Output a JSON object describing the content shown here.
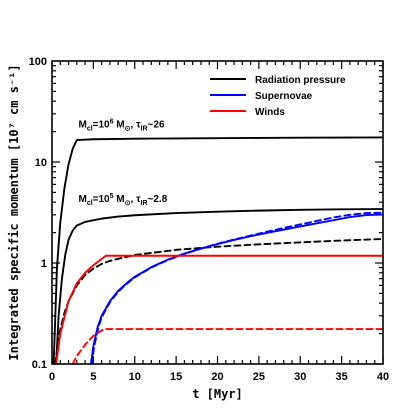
{
  "chart_data": {
    "type": "line",
    "xlabel": "t [Myr]",
    "ylabel": "Integrated specific momentum [10⁷ cm s⁻¹]",
    "xlim": [
      0,
      40
    ],
    "ylim": [
      0.1,
      100
    ],
    "yscale": "log",
    "grid": false,
    "legend_placement": "top-right",
    "x_ticks": [
      0,
      5,
      10,
      15,
      20,
      25,
      30,
      35,
      40
    ],
    "y_ticks": [
      0.1,
      1,
      10,
      100
    ],
    "y_tick_labels": [
      "0.1",
      "1",
      "10",
      "100"
    ],
    "legend": [
      {
        "label": "Radiation pressure",
        "color": "#000000"
      },
      {
        "label": "Supernovae",
        "color": "#0000ff"
      },
      {
        "label": "Winds",
        "color": "#ff0000"
      }
    ],
    "annotations": [
      {
        "text_parts": [
          {
            "t": "M",
            "style": "normal"
          },
          {
            "t": "cl",
            "style": "sub"
          },
          {
            "t": "=10",
            "style": "normal"
          },
          {
            "t": "6",
            "style": "sup"
          },
          {
            "t": " M",
            "style": "normal"
          },
          {
            "t": "⊙",
            "style": "sub"
          },
          {
            "t": ", τ",
            "style": "normal"
          },
          {
            "t": "IR",
            "style": "sub"
          },
          {
            "t": "~26",
            "style": "normal"
          }
        ],
        "x": 3.2,
        "y": 22
      },
      {
        "text_parts": [
          {
            "t": "M",
            "style": "normal"
          },
          {
            "t": "cl",
            "style": "sub"
          },
          {
            "t": "=10",
            "style": "normal"
          },
          {
            "t": "5",
            "style": "sup"
          },
          {
            "t": " M",
            "style": "normal"
          },
          {
            "t": "⊙",
            "style": "sub"
          },
          {
            "t": ", τ",
            "style": "normal"
          },
          {
            "t": "IR",
            "style": "sub"
          },
          {
            "t": "~2.8",
            "style": "normal"
          }
        ],
        "x": 3.2,
        "y": 4.0
      }
    ],
    "series": [
      {
        "group": "Radiation pressure",
        "color": "#000000",
        "dash": "solid",
        "x": [
          0.2,
          0.6,
          1.0,
          1.5,
          2.0,
          2.5,
          3.0,
          5,
          10,
          15,
          20,
          25,
          30,
          35,
          40
        ],
        "y": [
          0.1,
          0.9,
          2.5,
          5.5,
          9.5,
          13.5,
          16.5,
          16.8,
          17.0,
          17.1,
          17.2,
          17.3,
          17.4,
          17.45,
          17.5
        ]
      },
      {
        "group": "Radiation pressure",
        "color": "#000000",
        "dash": "solid",
        "x": [
          0.5,
          0.8,
          1.2,
          1.6,
          2.0,
          2.5,
          3.0,
          4,
          6,
          8,
          10,
          15,
          20,
          25,
          30,
          35,
          40
        ],
        "y": [
          0.1,
          0.3,
          0.7,
          1.2,
          1.7,
          2.1,
          2.35,
          2.55,
          2.75,
          2.88,
          2.97,
          3.12,
          3.22,
          3.3,
          3.36,
          3.4,
          3.42
        ]
      },
      {
        "group": "Radiation pressure",
        "color": "#000000",
        "dash": "dashed",
        "x": [
          0.4,
          0.7,
          1.0,
          1.5,
          2.0,
          3.0,
          4.0,
          5.0,
          6.0,
          7.0,
          8.0,
          10,
          15,
          20,
          25,
          30,
          35,
          40
        ],
        "y": [
          0.1,
          0.16,
          0.22,
          0.32,
          0.42,
          0.6,
          0.76,
          0.88,
          0.98,
          1.05,
          1.1,
          1.2,
          1.35,
          1.45,
          1.53,
          1.6,
          1.67,
          1.73
        ]
      },
      {
        "group": "Supernovae",
        "color": "#0000ff",
        "dash": "solid",
        "x": [
          4.7,
          5.0,
          5.5,
          6.0,
          7.0,
          8.0,
          9.0,
          10,
          12,
          14,
          16,
          18,
          20,
          22,
          24,
          26,
          28,
          30,
          32,
          34,
          36,
          38,
          40
        ],
        "y": [
          0.1,
          0.15,
          0.23,
          0.3,
          0.42,
          0.53,
          0.63,
          0.73,
          0.91,
          1.08,
          1.24,
          1.39,
          1.54,
          1.69,
          1.84,
          1.99,
          2.14,
          2.3,
          2.47,
          2.65,
          2.85,
          2.98,
          3.02
        ]
      },
      {
        "group": "Supernovae",
        "color": "#0000ff",
        "dash": "dashed",
        "x": [
          4.8,
          5.1,
          5.6,
          6.0,
          7.0,
          8.0,
          9.0,
          10,
          12,
          14,
          16,
          18,
          20,
          22,
          24,
          26,
          28,
          30,
          32,
          34,
          36,
          38,
          40
        ],
        "y": [
          0.1,
          0.15,
          0.23,
          0.29,
          0.41,
          0.52,
          0.62,
          0.72,
          0.9,
          1.07,
          1.23,
          1.39,
          1.55,
          1.71,
          1.87,
          2.04,
          2.22,
          2.41,
          2.61,
          2.82,
          3.0,
          3.12,
          3.15
        ]
      },
      {
        "group": "Winds",
        "color": "#ff0000",
        "dash": "solid",
        "x": [
          0.5,
          1.0,
          2.0,
          3.0,
          4.0,
          5.0,
          6.0,
          6.5,
          40
        ],
        "y": [
          0.1,
          0.2,
          0.42,
          0.63,
          0.8,
          0.95,
          1.1,
          1.18,
          1.18
        ]
      },
      {
        "group": "Winds",
        "color": "#ff0000",
        "dash": "dashed",
        "x": [
          2.5,
          3.0,
          4.0,
          5.0,
          6.0,
          6.5,
          40
        ],
        "y": [
          0.1,
          0.12,
          0.155,
          0.19,
          0.215,
          0.222,
          0.222
        ]
      }
    ]
  }
}
